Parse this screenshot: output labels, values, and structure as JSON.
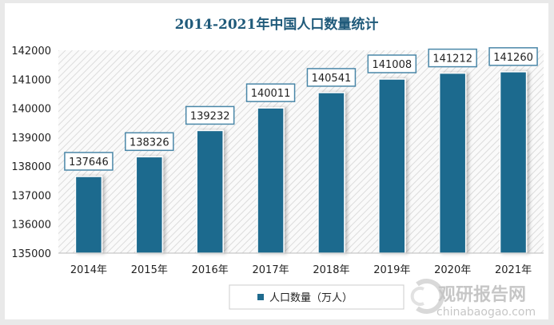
{
  "chart_data": {
    "type": "bar",
    "title": "2014-2021年中国人口数量统计",
    "categories": [
      "2014年",
      "2015年",
      "2016年",
      "2017年",
      "2018年",
      "2019年",
      "2020年",
      "2021年"
    ],
    "series": [
      {
        "name": "人口数量（万人）",
        "values": [
          137646,
          138326,
          139232,
          140011,
          140541,
          141008,
          141212,
          141260
        ]
      }
    ],
    "ylim": [
      135000,
      142000
    ],
    "yticks": [
      135000,
      136000,
      137000,
      138000,
      139000,
      140000,
      141000,
      142000
    ],
    "grid": false,
    "legend": "bottom-left",
    "data_labels": true
  },
  "colors": {
    "bar": "#1f6b8e",
    "title": "#1f5a7a",
    "label_border": "#4a87a8"
  },
  "watermark": {
    "brand": "观研报告网",
    "url": "chinabaogao.com"
  }
}
